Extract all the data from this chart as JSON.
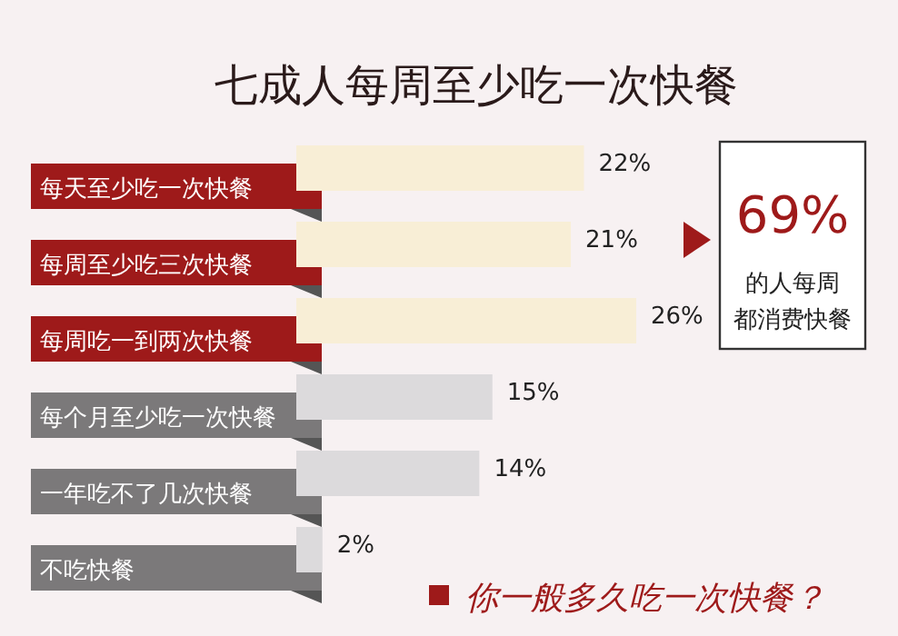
{
  "chart_data": {
    "type": "bar",
    "orientation": "horizontal",
    "title": "七成人每周至少吃一次快餐",
    "categories": [
      "每天至少吃一次快餐",
      "每周至少吃三次快餐",
      "每周吃一到两次快餐",
      "每个月至少吃一次快餐",
      "一年吃不了几次快餐",
      "不吃快餐"
    ],
    "values": [
      22,
      21,
      26,
      15,
      14,
      2
    ],
    "colors": [
      "#f8eed6",
      "#f8eed6",
      "#f8eed6",
      "#dcdadc",
      "#dcdadc",
      "#dcdadc"
    ],
    "value_labels": [
      "22%",
      "21%",
      "26%",
      "15%",
      "14%",
      "2%"
    ],
    "annotations": [
      "69%",
      "的人每周",
      "都消费快餐",
      "你一般多久吃一次快餐？"
    ]
  }
}
